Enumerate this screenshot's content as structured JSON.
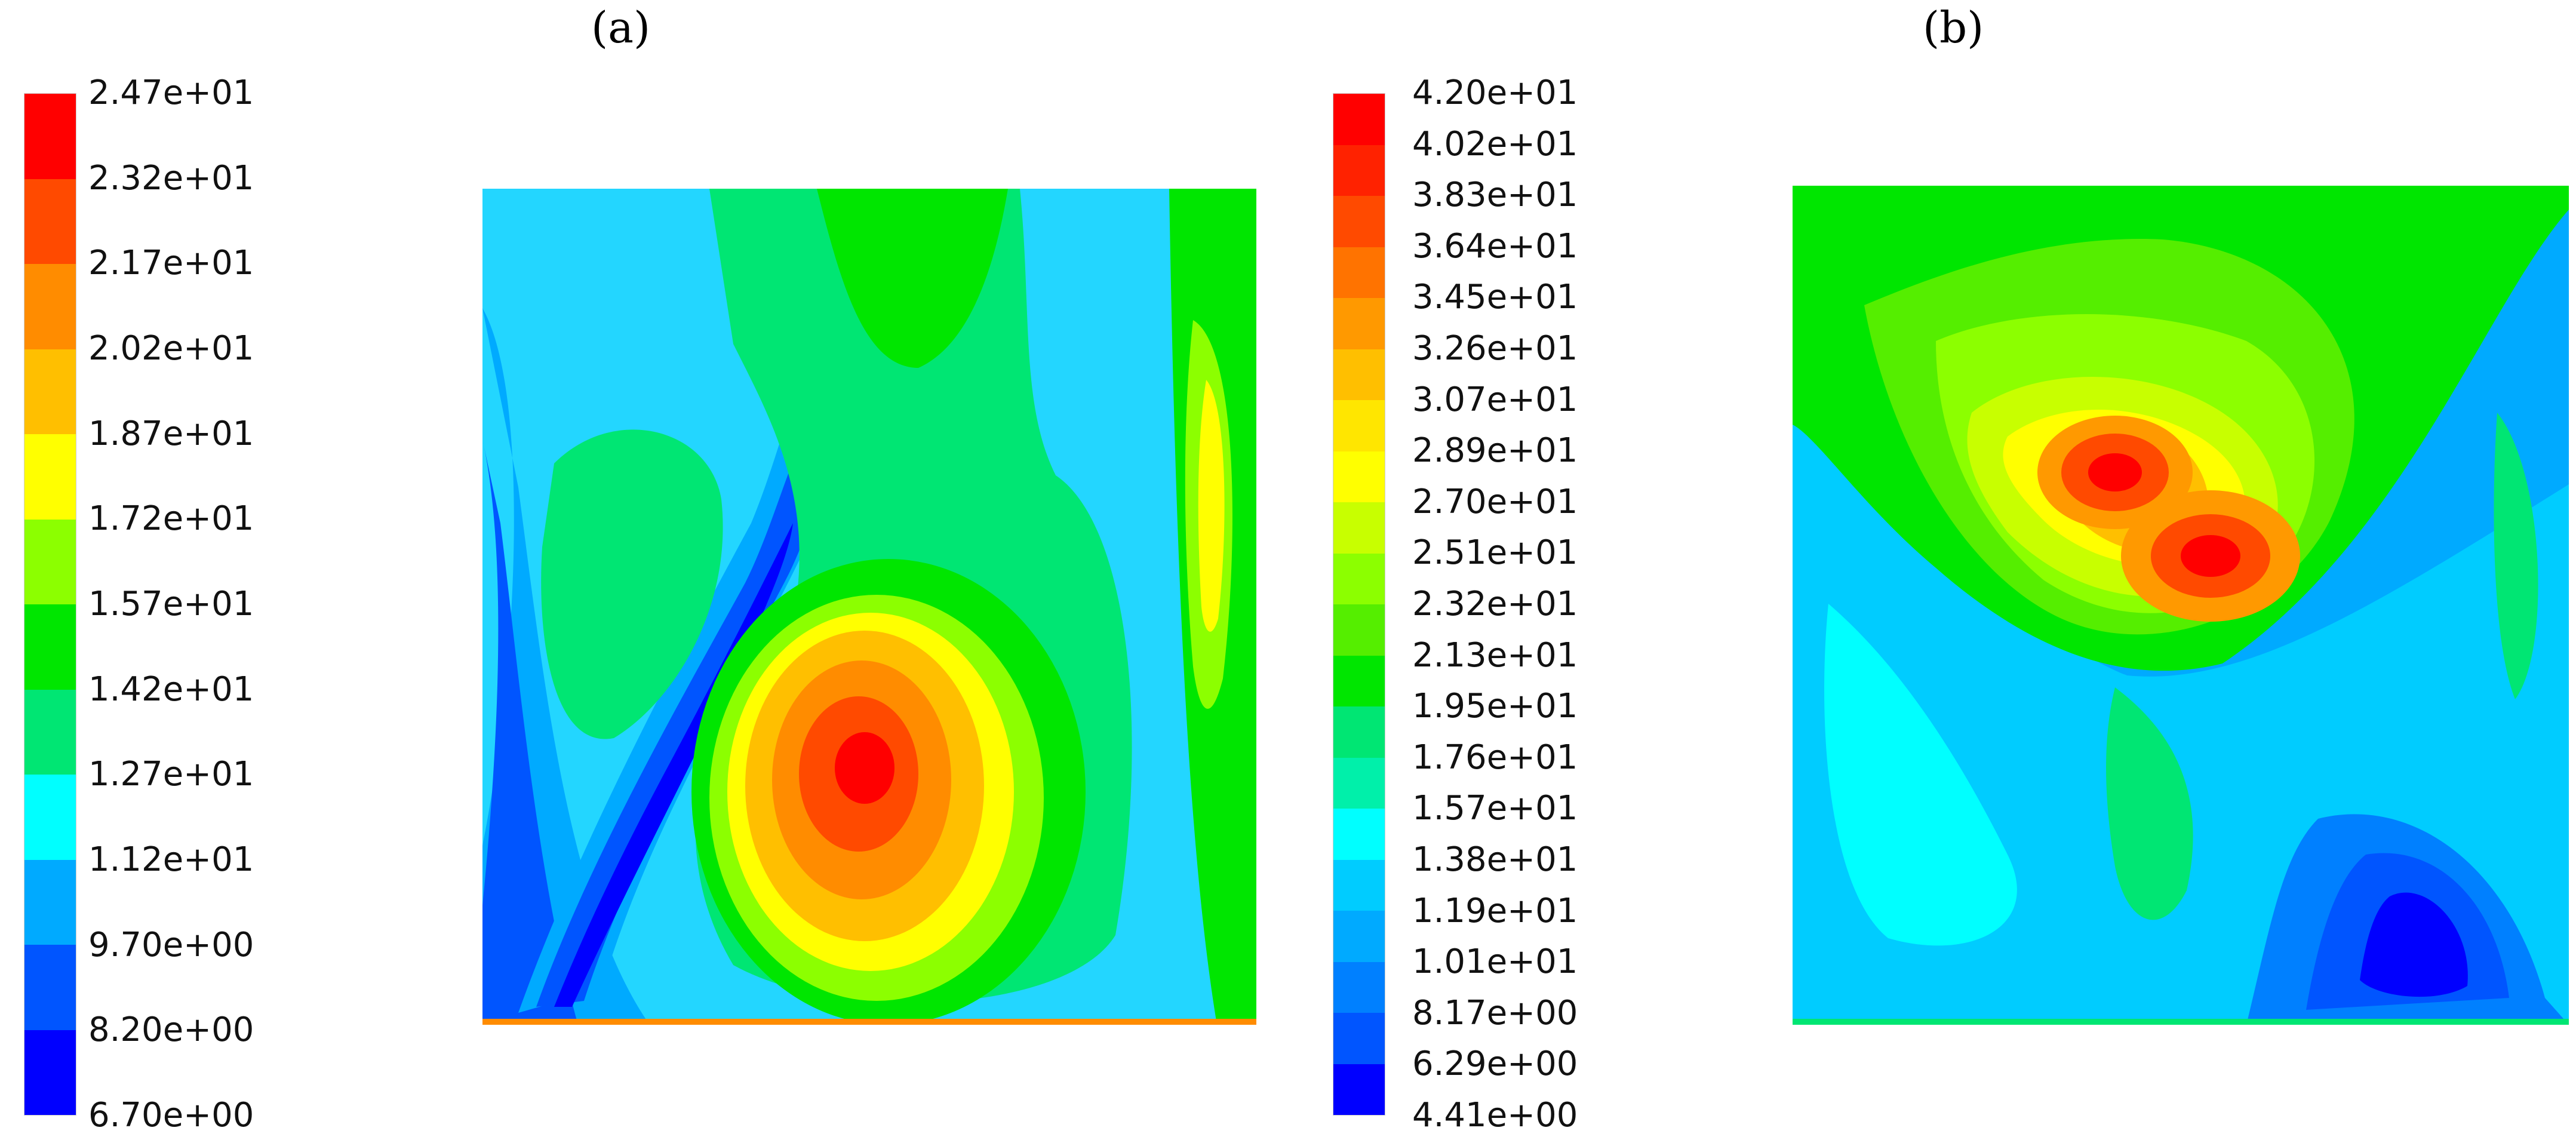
{
  "chart_data": [
    {
      "type": "heatmap",
      "panel_label": "(a)",
      "colorbar": {
        "min": 6.7,
        "max": 24.7,
        "ticks": [
          "2.47e+01",
          "2.32e+01",
          "2.17e+01",
          "2.02e+01",
          "1.87e+01",
          "1.72e+01",
          "1.57e+01",
          "1.42e+01",
          "1.27e+01",
          "1.12e+01",
          "9.70e+00",
          "8.20e+00",
          "6.70e+00"
        ],
        "colors": [
          "#ff0000",
          "#ff4a00",
          "#ff8c00",
          "#ffbf00",
          "#ffff00",
          "#8cff00",
          "#00e600",
          "#00e673",
          "#00ffff",
          "#00aaff",
          "#0055ff",
          "#0000ff"
        ]
      },
      "background_color": "#23d6ff",
      "features": [
        {
          "name": "central hot spot",
          "peak": 24.7,
          "position": "lower center"
        },
        {
          "name": "right edge band",
          "peak": 18.7,
          "position": "right side"
        },
        {
          "name": "diagonal cold streak",
          "value": 6.7,
          "position": "lower left diagonal"
        }
      ]
    },
    {
      "type": "heatmap",
      "panel_label": "(b)",
      "colorbar": {
        "min": 4.41,
        "max": 42.0,
        "ticks": [
          "4.20e+01",
          "4.02e+01",
          "3.83e+01",
          "3.64e+01",
          "3.45e+01",
          "3.26e+01",
          "3.07e+01",
          "2.89e+01",
          "2.70e+01",
          "2.51e+01",
          "2.32e+01",
          "2.13e+01",
          "1.95e+01",
          "1.76e+01",
          "1.57e+01",
          "1.38e+01",
          "1.19e+01",
          "1.01e+01",
          "8.17e+00",
          "6.29e+00",
          "4.41e+00"
        ],
        "colors": [
          "#ff0000",
          "#ff2200",
          "#ff4a00",
          "#ff7300",
          "#ff9900",
          "#ffbf00",
          "#ffe600",
          "#ffff00",
          "#c8ff00",
          "#8cff00",
          "#55ee00",
          "#00e600",
          "#00e673",
          "#00f0aa",
          "#00ffff",
          "#00ccff",
          "#00aaff",
          "#0080ff",
          "#0055ff",
          "#0000ff"
        ]
      },
      "background_color": "#23d6ff",
      "features": [
        {
          "name": "upper hot spot left",
          "peak": 42.0,
          "position": "upper center"
        },
        {
          "name": "upper hot spot right",
          "peak": 40.2,
          "position": "upper center-right"
        },
        {
          "name": "lower right cold pool",
          "value": 4.41,
          "position": "lower right"
        }
      ]
    }
  ]
}
